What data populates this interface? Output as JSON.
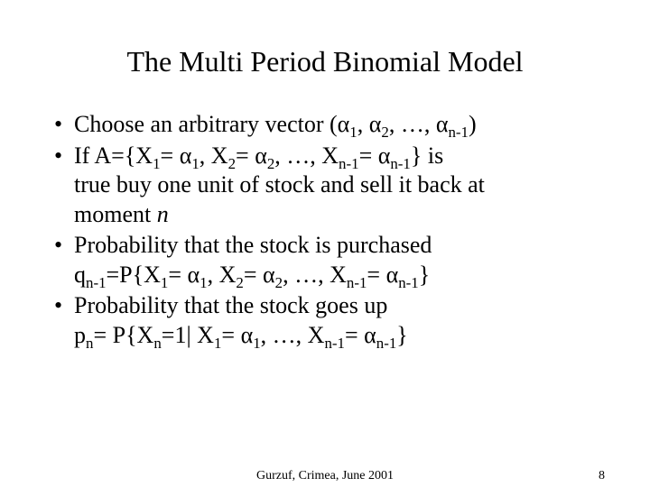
{
  "title": "The Multi Period Binomial Model",
  "bullets": {
    "b1": {
      "pre": "Choose an arbitrary vector (",
      "a1": "α",
      "s1": "1",
      "sep1": ", ",
      "a2": "α",
      "s2": "2",
      "sep2": ", …, ",
      "a3": "α",
      "s3": "n-1",
      "post": ")"
    },
    "b2": {
      "l1_1": "If A={X",
      "l1_s1": "1",
      "l1_2": "= ",
      "l1_a1": "α",
      "l1_s2": "1",
      "l1_3": ", X",
      "l1_s3": "2",
      "l1_4": "= ",
      "l1_a2": "α",
      "l1_s4": "2",
      "l1_5": ", …, X",
      "l1_s5": "n-1",
      "l1_6": "= ",
      "l1_a3": "α",
      "l1_s6": "n-1",
      "l1_7": "} is",
      "l2": "true buy one unit of stock and sell it back at",
      "l3_1": "moment ",
      "l3_i": "n"
    },
    "b3": {
      "l1": "Probability that the stock is purchased",
      "l2_1": "q",
      "l2_s1": "n-1",
      "l2_2": "=P{X",
      "l2_s2": "1",
      "l2_3": "= ",
      "l2_a1": "α",
      "l2_s3": "1",
      "l2_4": ", X",
      "l2_s4": "2",
      "l2_5": "= ",
      "l2_a2": "α",
      "l2_s5": "2",
      "l2_6": ", …, X",
      "l2_s6": "n-1",
      "l2_7": "= ",
      "l2_a3": "α",
      "l2_s7": "n-1",
      "l2_8": "}"
    },
    "b4": {
      "l1": "Probability that the stock goes up",
      "l2_1": "p",
      "l2_s1": "n",
      "l2_2": "= P{X",
      "l2_s2": "n",
      "l2_3": "=1| X",
      "l2_s3": "1",
      "l2_4": "= ",
      "l2_a1": "α",
      "l2_s4": "1",
      "l2_5": ", …, X",
      "l2_s5": "n-1",
      "l2_6": "= ",
      "l2_a2": "α",
      "l2_s6": "n-1",
      "l2_7": "}"
    }
  },
  "footer": {
    "center": "Gurzuf, Crimea, June 2001",
    "page": "8"
  },
  "style": {
    "background": "#ffffff",
    "text_color": "#000000",
    "title_fontsize": 32,
    "body_fontsize": 26,
    "footer_fontsize": 14,
    "font_family": "Times New Roman"
  }
}
